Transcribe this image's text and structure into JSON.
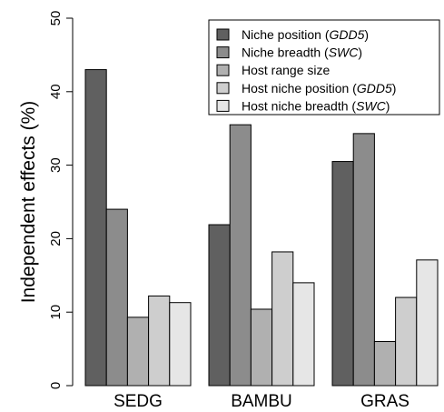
{
  "chart_data": {
    "type": "bar",
    "ylabel": "Independent effects (%)",
    "xlabel": "",
    "ylim": [
      0,
      50
    ],
    "yticks": [
      0,
      10,
      20,
      30,
      40,
      50
    ],
    "categories": [
      "SEDG",
      "BAMBU",
      "GRAS"
    ],
    "legend_position": "top-right",
    "grid": false,
    "series": [
      {
        "name": "Niche position (GDD5)",
        "legend_plain": "Niche position (",
        "legend_italic": "GDD5",
        "legend_close": ")",
        "color": "#606060",
        "values": [
          43.0,
          21.9,
          30.5
        ]
      },
      {
        "name": "Niche breadth (SWC)",
        "legend_plain": "Niche breadth (",
        "legend_italic": "SWC",
        "legend_close": ")",
        "color": "#8c8c8c",
        "values": [
          24.0,
          35.5,
          34.3
        ]
      },
      {
        "name": "Host range size",
        "legend_plain": "Host range size",
        "legend_italic": "",
        "legend_close": "",
        "color": "#b0b0b0",
        "values": [
          9.3,
          10.4,
          6.0
        ]
      },
      {
        "name": "Host niche position (GDD5)",
        "legend_plain": "Host niche position (",
        "legend_italic": "GDD5",
        "legend_close": ")",
        "color": "#cecece",
        "values": [
          12.2,
          18.2,
          12.0
        ]
      },
      {
        "name": "Host niche breadth (SWC)",
        "legend_plain": "Host niche breadth (",
        "legend_italic": "SWC",
        "legend_close": ")",
        "color": "#e6e6e6",
        "values": [
          11.3,
          14.0,
          17.1
        ]
      }
    ]
  }
}
